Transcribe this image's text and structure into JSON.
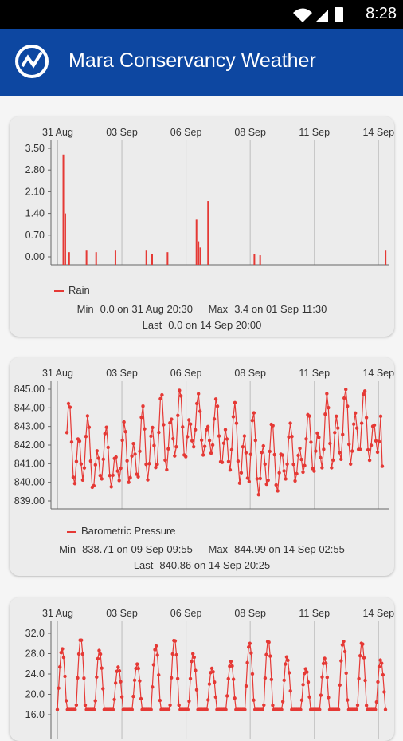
{
  "status_bar": {
    "time": "8:28"
  },
  "app_bar": {
    "title": "Mara Conservancy Weather",
    "logo_icon": "weather-station-logo-icon"
  },
  "colors": {
    "app_bar": "#0d47a1",
    "series": "#e53935",
    "grid": "#bdbdbd",
    "card": "#ececec"
  },
  "cards": [
    {
      "legend": "Rain",
      "min_label": "Min",
      "min_value": "0.0 on 31 Aug 20:30",
      "max_label": "Max",
      "max_value": "3.4 on 01 Sep 11:30",
      "last_label": "Last",
      "last_value": "0.0 on 14 Sep 20:00"
    },
    {
      "legend": "Barometric Pressure",
      "min_label": "Min",
      "min_value": "838.71 on 09 Sep 09:55",
      "max_label": "Max",
      "max_value": "844.99 on 14 Sep 02:55",
      "last_label": "Last",
      "last_value": "840.86 on 14 Sep 20:25"
    },
    {
      "legend": ""
    }
  ],
  "chart_data": [
    {
      "type": "bar",
      "x_ticks": [
        "31 Aug",
        "03 Sep",
        "06 Sep",
        "08 Sep",
        "11 Sep",
        "14 Sep"
      ],
      "y_ticks": [
        "3.50",
        "2.80",
        "2.10",
        "1.40",
        "0.70",
        "0.00"
      ],
      "ylim": [
        0,
        3.5
      ],
      "series": [
        {
          "name": "Rain",
          "color": "#e53935",
          "x": [
            0.6,
            0.7,
            0.9,
            1.8,
            2.3,
            3.3,
            4.9,
            5.2,
            6.0,
            7.5,
            7.6,
            7.7,
            8.1,
            10.5,
            10.8,
            17.3
          ],
          "values": [
            3.3,
            1.4,
            0.15,
            0.2,
            0.15,
            0.2,
            0.2,
            0.1,
            0.15,
            1.2,
            0.5,
            0.3,
            1.8,
            0.1,
            0.05,
            0.2
          ]
        }
      ],
      "days": 17.5
    },
    {
      "type": "line",
      "x_ticks": [
        "31 Aug",
        "03 Sep",
        "06 Sep",
        "08 Sep",
        "11 Sep",
        "14 Sep"
      ],
      "y_ticks": [
        "845.00",
        "844.00",
        "843.00",
        "842.00",
        "841.00",
        "840.00",
        "839.00"
      ],
      "ylim": [
        838.5,
        845.3
      ],
      "series": [
        {
          "name": "Barometric Pressure",
          "color": "#e53935"
        }
      ],
      "days": 17.2,
      "min": 838.71,
      "max": 844.99,
      "last": 840.86
    },
    {
      "type": "line",
      "x_ticks": [
        "31 Aug",
        "03 Sep",
        "06 Sep",
        "08 Sep",
        "11 Sep",
        "14 Sep"
      ],
      "y_ticks": [
        "32.0",
        "28.0",
        "24.0",
        "20.0",
        "16.0"
      ],
      "ylim": [
        15.5,
        33.5
      ],
      "series": [
        {
          "name": "",
          "color": "#e53935"
        }
      ],
      "days": 17.5
    }
  ]
}
